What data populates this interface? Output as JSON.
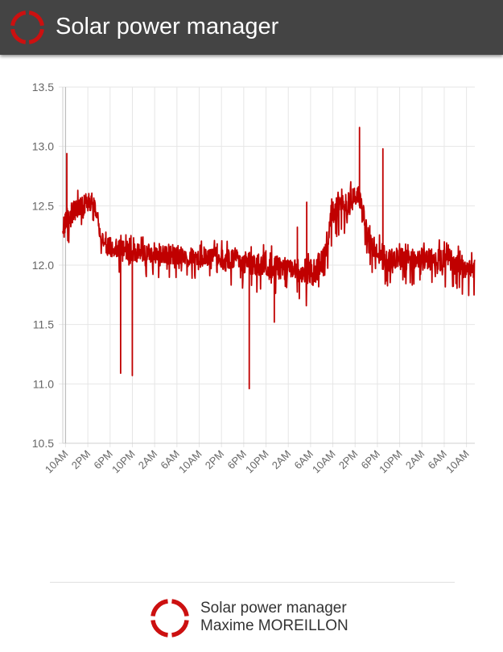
{
  "header": {
    "title": "Solar power manager",
    "logo_icon": "ring-logo-icon"
  },
  "colors": {
    "header_bg": "#444444",
    "series": "#c00000",
    "grid": "#e6e6e6",
    "axis_text": "#666666",
    "logo": "#cc1010"
  },
  "chart_data": {
    "type": "line",
    "title": "",
    "xlabel": "",
    "ylabel": "",
    "ylim": [
      10.5,
      13.5
    ],
    "yticks": [
      "10.5",
      "11.0",
      "11.5",
      "12.0",
      "12.5",
      "13.0",
      "13.5"
    ],
    "xticks": [
      "10AM",
      "2PM",
      "6PM",
      "10PM",
      "2AM",
      "6AM",
      "10AM",
      "2PM",
      "6PM",
      "10PM",
      "2AM",
      "6AM",
      "10AM",
      "2PM",
      "6PM",
      "10PM",
      "2AM",
      "6AM",
      "10AM"
    ],
    "x_unit": "hours since the first 10AM tick",
    "x_range": [
      -0.5,
      73.5
    ],
    "grid": true,
    "legend": "none",
    "series": [
      {
        "trend": [
          [
            -0.5,
            12.28
          ],
          [
            0,
            12.38
          ],
          [
            1,
            12.44
          ],
          [
            2,
            12.46
          ],
          [
            3,
            12.48
          ],
          [
            4,
            12.52
          ],
          [
            4.5,
            12.55
          ],
          [
            5,
            12.5
          ],
          [
            5.5,
            12.42
          ],
          [
            6,
            12.3
          ],
          [
            6.6,
            12.2
          ],
          [
            7.5,
            12.16
          ],
          [
            9,
            12.14
          ],
          [
            11,
            12.12
          ],
          [
            14,
            12.1
          ],
          [
            18,
            12.09
          ],
          [
            22,
            12.08
          ],
          [
            26,
            12.06
          ],
          [
            30,
            12.04
          ],
          [
            34,
            12.01
          ],
          [
            38,
            11.98
          ],
          [
            42,
            11.95
          ],
          [
            43.5,
            11.93
          ],
          [
            45,
            11.96
          ],
          [
            46,
            12.02
          ],
          [
            46.8,
            12.12
          ],
          [
            47.4,
            12.3
          ],
          [
            48,
            12.45
          ],
          [
            49.5,
            12.5
          ],
          [
            51,
            12.52
          ],
          [
            52,
            12.56
          ],
          [
            52.5,
            12.58
          ],
          [
            53,
            12.5
          ],
          [
            53.7,
            12.38
          ],
          [
            54.3,
            12.26
          ],
          [
            55,
            12.17
          ],
          [
            56,
            12.1
          ],
          [
            58,
            12.06
          ],
          [
            60,
            12.05
          ],
          [
            62,
            12.04
          ],
          [
            64,
            12.05
          ],
          [
            66,
            12.05
          ],
          [
            68,
            12.04
          ],
          [
            70,
            12.02
          ],
          [
            72,
            11.98
          ],
          [
            73.5,
            11.96
          ]
        ],
        "noise_ranges": [
          [
            -0.5,
            6,
            0.12
          ],
          [
            6,
            24,
            0.1
          ],
          [
            24,
            43,
            0.12
          ],
          [
            43,
            46,
            0.15
          ],
          [
            46,
            54,
            0.12
          ],
          [
            54,
            73.5,
            0.12
          ]
        ],
        "spikes": [
          [
            0.2,
            12.94
          ],
          [
            4.9,
            12.38
          ],
          [
            9.9,
            11.09
          ],
          [
            12.0,
            11.07
          ],
          [
            27.2,
            12.18
          ],
          [
            33.0,
            10.96
          ],
          [
            37.5,
            11.52
          ],
          [
            41.6,
            12.32
          ],
          [
            43.3,
            12.53
          ],
          [
            52.8,
            13.16
          ],
          [
            57.0,
            12.98
          ]
        ]
      }
    ]
  },
  "footer": {
    "line1": "Solar power manager",
    "line2": "Maxime MOREILLON",
    "logo_icon": "ring-logo-icon"
  }
}
